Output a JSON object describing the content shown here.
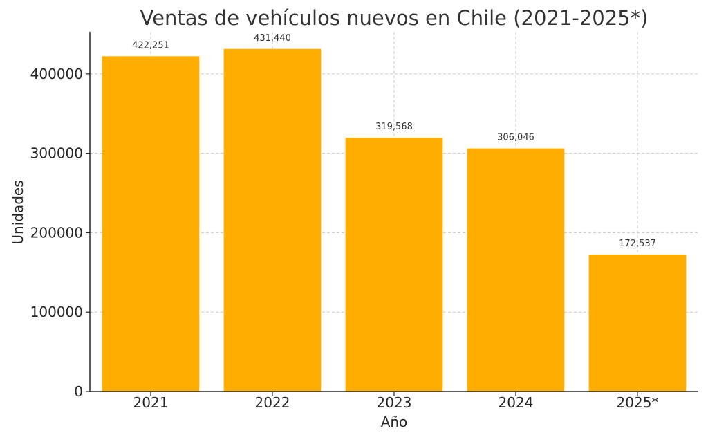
{
  "chart_data": {
    "type": "bar",
    "title": "Ventas de vehículos nuevos en Chile (2021-2025*)",
    "xlabel": "Año",
    "ylabel": "Unidades",
    "categories": [
      "2021",
      "2022",
      "2023",
      "2024",
      "2025*"
    ],
    "values": [
      422251,
      431440,
      319568,
      306046,
      172537
    ],
    "data_labels": [
      "422,251",
      "431,440",
      "319,568",
      "306,046",
      "172,537"
    ],
    "yticks": [
      0,
      100000,
      200000,
      300000,
      400000
    ],
    "ytick_labels": [
      "0",
      "100000",
      "200000",
      "300000",
      "400000"
    ],
    "ylim": [
      0,
      453012
    ],
    "grid": true,
    "colors": {
      "bar": "#FFAE00",
      "grid": "#C8C8C8",
      "axis": "#262626",
      "text": "#262626"
    }
  }
}
